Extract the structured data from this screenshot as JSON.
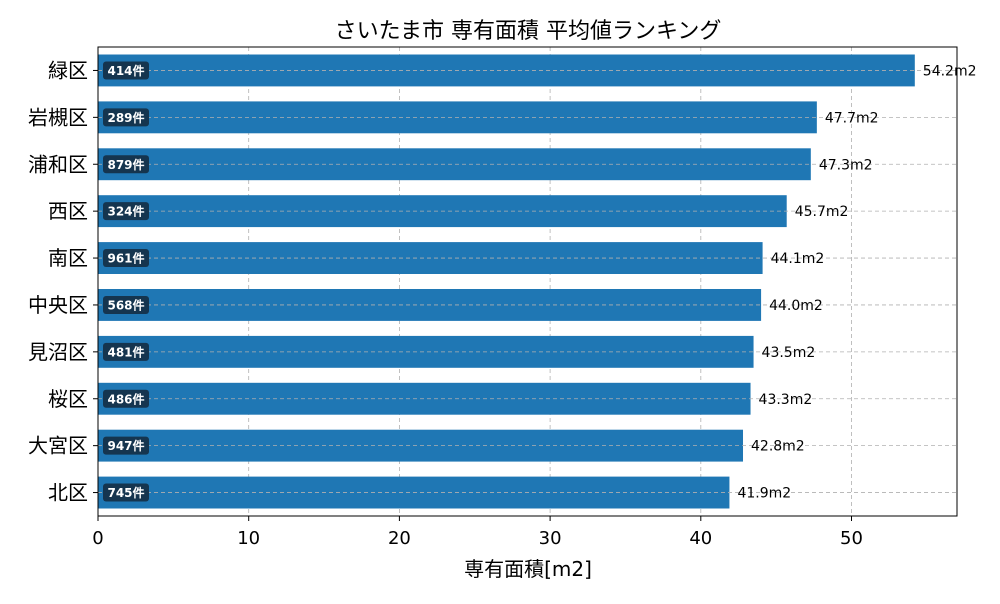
{
  "chart_data": {
    "type": "bar",
    "orientation": "horizontal",
    "title": "さいたま市 専有面積 平均値ランキング",
    "xlabel": "専有面積[m2]",
    "ylabel": "",
    "xlim": [
      0,
      57
    ],
    "xticks": [
      0,
      10,
      20,
      30,
      40,
      50
    ],
    "grid": true,
    "categories": [
      "緑区",
      "岩槻区",
      "浦和区",
      "西区",
      "南区",
      "中央区",
      "見沼区",
      "桜区",
      "大宮区",
      "北区"
    ],
    "values": [
      54.2,
      47.7,
      47.3,
      45.7,
      44.1,
      44.0,
      43.5,
      43.3,
      42.8,
      41.9
    ],
    "value_labels": [
      "54.2m2",
      "47.7m2",
      "47.3m2",
      "45.7m2",
      "44.1m2",
      "44.0m2",
      "43.5m2",
      "43.3m2",
      "42.8m2",
      "41.9m2"
    ],
    "count_labels": [
      "414件",
      "289件",
      "879件",
      "324件",
      "961件",
      "568件",
      "481件",
      "486件",
      "947件",
      "745件"
    ],
    "colors": {
      "bar": "#1f77b4",
      "count_badge": "#15354f",
      "grid": "#b0b0b0"
    }
  }
}
